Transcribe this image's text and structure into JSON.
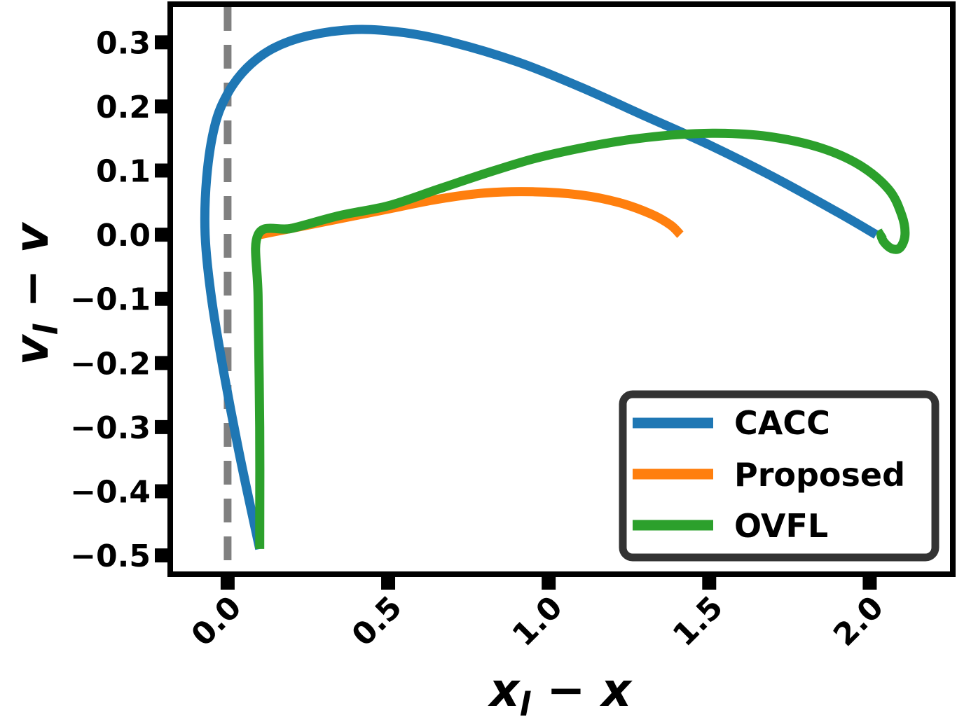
{
  "chart_data": {
    "type": "line",
    "title": "",
    "xlabel_base": "x",
    "xlabel_sub": "l",
    "xlabel_rest": " − x",
    "ylabel_base": "v",
    "ylabel_sub": "l",
    "ylabel_rest": " − v",
    "xlim": [
      -0.17,
      2.25
    ],
    "ylim": [
      -0.525,
      0.355
    ],
    "x_ticks": [
      0.0,
      0.5,
      1.0,
      1.5,
      2.0
    ],
    "x_tick_labels": [
      "0.0",
      "0.5",
      "1.0",
      "1.5",
      "2.0"
    ],
    "y_ticks": [
      0.3,
      0.2,
      0.1,
      0.0,
      -0.1,
      -0.2,
      -0.3,
      -0.4,
      -0.5
    ],
    "y_tick_labels": [
      "0.3",
      "0.2",
      "0.1",
      "0.0",
      "−0.1",
      "−0.2",
      "−0.3",
      "−0.4",
      "−0.5"
    ],
    "grid": false,
    "legend_position": "lower-right",
    "reference_line": {
      "x": 0.0,
      "color": "#808080",
      "style": "dashed"
    },
    "series": [
      {
        "name": "CACC",
        "color": "#1f77b4",
        "points": [
          [
            0.1,
            -0.49
          ],
          [
            0.04,
            -0.35
          ],
          [
            -0.01,
            -0.22
          ],
          [
            -0.05,
            -0.1
          ],
          [
            -0.07,
            0.0
          ],
          [
            -0.065,
            0.09
          ],
          [
            -0.04,
            0.17
          ],
          [
            0.0,
            0.22
          ],
          [
            0.06,
            0.26
          ],
          [
            0.14,
            0.29
          ],
          [
            0.25,
            0.31
          ],
          [
            0.4,
            0.32
          ],
          [
            0.55,
            0.315
          ],
          [
            0.7,
            0.3
          ],
          [
            0.9,
            0.27
          ],
          [
            1.1,
            0.23
          ],
          [
            1.3,
            0.185
          ],
          [
            1.5,
            0.14
          ],
          [
            1.7,
            0.09
          ],
          [
            1.9,
            0.035
          ],
          [
            2.02,
            0.0
          ]
        ]
      },
      {
        "name": "Proposed",
        "color": "#ff7f0e",
        "points": [
          [
            0.1,
            0.0
          ],
          [
            0.2,
            0.01
          ],
          [
            0.35,
            0.025
          ],
          [
            0.5,
            0.04
          ],
          [
            0.65,
            0.055
          ],
          [
            0.8,
            0.065
          ],
          [
            0.95,
            0.067
          ],
          [
            1.1,
            0.062
          ],
          [
            1.22,
            0.05
          ],
          [
            1.32,
            0.032
          ],
          [
            1.38,
            0.015
          ],
          [
            1.41,
            0.0
          ]
        ]
      },
      {
        "name": "OVFL",
        "color": "#2ca02c",
        "points": [
          [
            0.1,
            -0.49
          ],
          [
            0.1,
            -0.3
          ],
          [
            0.095,
            -0.1
          ],
          [
            0.095,
            0.0
          ],
          [
            0.2,
            0.01
          ],
          [
            0.35,
            0.03
          ],
          [
            0.5,
            0.045
          ],
          [
            0.65,
            0.07
          ],
          [
            0.8,
            0.095
          ],
          [
            0.95,
            0.118
          ],
          [
            1.1,
            0.135
          ],
          [
            1.25,
            0.148
          ],
          [
            1.4,
            0.156
          ],
          [
            1.55,
            0.158
          ],
          [
            1.7,
            0.152
          ],
          [
            1.85,
            0.135
          ],
          [
            1.97,
            0.108
          ],
          [
            2.06,
            0.07
          ],
          [
            2.1,
            0.03
          ],
          [
            2.11,
            0.0
          ],
          [
            2.095,
            -0.02
          ],
          [
            2.07,
            -0.022
          ],
          [
            2.045,
            -0.012
          ],
          [
            2.035,
            0.0
          ],
          [
            2.045,
            0.003
          ]
        ]
      }
    ]
  }
}
